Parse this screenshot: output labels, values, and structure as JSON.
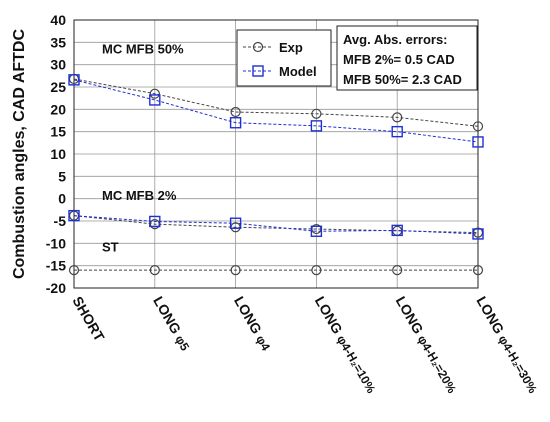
{
  "chart_data": {
    "type": "line",
    "ylabel": "Combustion angles, CAD AFTDC",
    "ylim": [
      -20,
      40
    ],
    "yticks": [
      -20,
      -15,
      -10,
      -5,
      0,
      5,
      10,
      15,
      20,
      25,
      30,
      35,
      40
    ],
    "grid": true,
    "categories": [
      {
        "main": "SHORT",
        "suffix": ""
      },
      {
        "main": "LONG ",
        "suffix": "φ5"
      },
      {
        "main": "LONG ",
        "suffix": "φ4"
      },
      {
        "main": "LONG ",
        "suffix": "φ4-H₂=10%"
      },
      {
        "main": "LONG ",
        "suffix": "φ4-H₂=20%"
      },
      {
        "main": "LONG ",
        "suffix": "φ4-H₂=30%"
      }
    ],
    "series": [
      {
        "name": "Exp",
        "group": "MC MFB 50%",
        "marker": "circle",
        "values": [
          26.8,
          23.5,
          19.4,
          19.0,
          18.2,
          16.2
        ]
      },
      {
        "name": "Model",
        "group": "MC MFB 50%",
        "marker": "square",
        "values": [
          26.6,
          22.1,
          17.0,
          16.3,
          15.0,
          12.7
        ]
      },
      {
        "name": "Exp",
        "group": "MC MFB 2%",
        "marker": "circle",
        "values": [
          -3.8,
          -5.7,
          -6.4,
          -6.8,
          -7.2,
          -7.6
        ]
      },
      {
        "name": "Model",
        "group": "MC MFB 2%",
        "marker": "square",
        "values": [
          -3.8,
          -5.1,
          -5.5,
          -7.3,
          -7.1,
          -7.9
        ]
      },
      {
        "name": "Exp",
        "group": "ST",
        "marker": "circle",
        "values": [
          -16,
          -16,
          -16,
          -16,
          -16,
          -16
        ]
      }
    ],
    "annotations": [
      {
        "text": "MC MFB 50%",
        "x": 0,
        "y": 32.5
      },
      {
        "text": "MC MFB 2%",
        "x": 0,
        "y": -0.3
      },
      {
        "text": "ST",
        "x": 0,
        "y": -11.8
      }
    ],
    "legend": {
      "placement": "top-center",
      "entries": [
        {
          "label": "Exp",
          "marker": "circle"
        },
        {
          "label": "Model",
          "marker": "square"
        }
      ]
    },
    "error_box": {
      "placement": "top-right",
      "lines": [
        "Avg. Abs. errors:",
        "MFB 2%= 0.5 CAD",
        "MFB 50%= 2.3 CAD"
      ]
    },
    "colors": {
      "exp": "#444444",
      "model": "#1f2fd6",
      "grid": "#999999"
    }
  }
}
